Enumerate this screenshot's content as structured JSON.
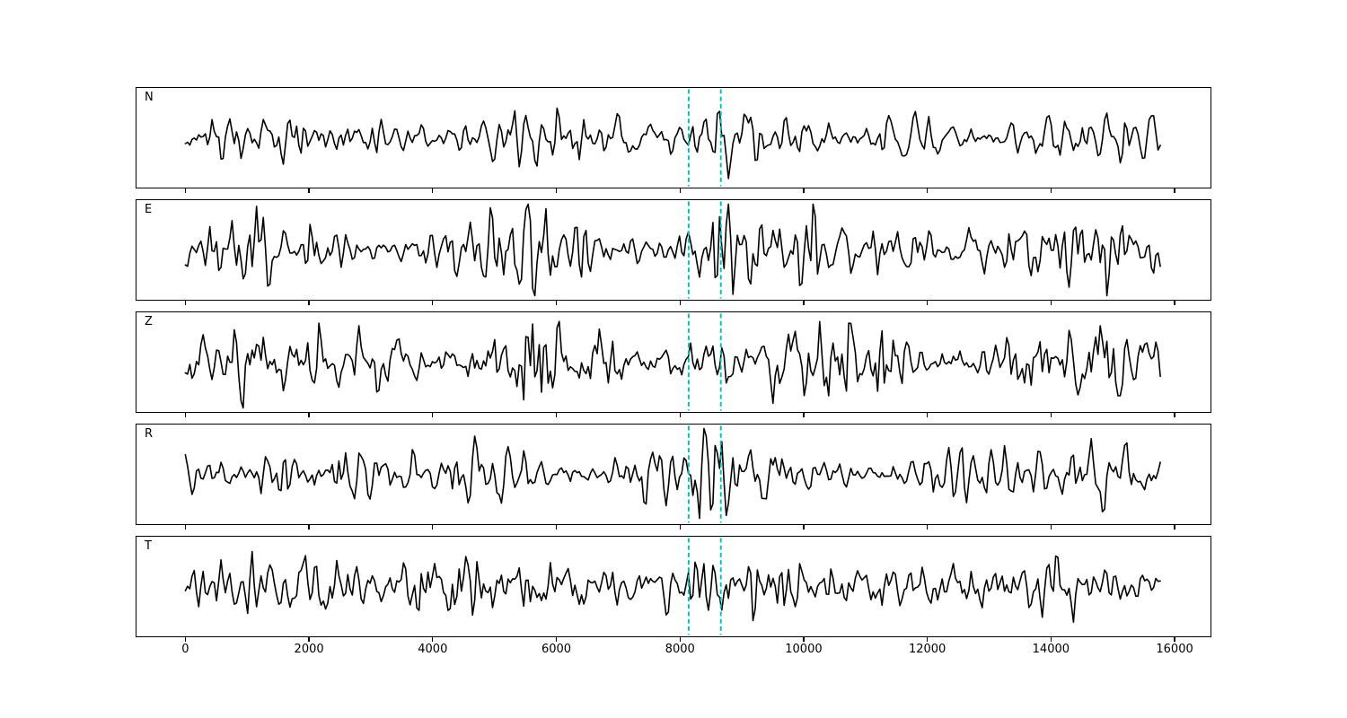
{
  "figure": {
    "background_color": "#ffffff",
    "frame_color": "#000000",
    "trace_color": "#000000",
    "pick_line_color": "#00bfbf"
  },
  "chart_data": {
    "type": "line",
    "title": "",
    "xlabel": "",
    "ylabel": "",
    "x_range_data": [
      0,
      15790
    ],
    "xlim": [
      -790,
      16580
    ],
    "x_ticks": [
      0,
      2000,
      4000,
      6000,
      8000,
      10000,
      12000,
      14000,
      16000
    ],
    "grid": false,
    "legend": "none",
    "panels": [
      {
        "label": "N",
        "seed": 7,
        "amplitude": 11,
        "burst": 1.15
      },
      {
        "label": "E",
        "seed": 13,
        "amplitude": 14,
        "burst": 0.75
      },
      {
        "label": "Z",
        "seed": 21,
        "amplitude": 15,
        "burst": 0.7
      },
      {
        "label": "R",
        "seed": 5,
        "amplitude": 11.5,
        "burst": 1.15
      },
      {
        "label": "T",
        "seed": 42,
        "amplitude": 14,
        "burst": 0.8
      }
    ],
    "pick_lines": [
      8140,
      8660
    ],
    "burst_center": 8480,
    "burst_width": 390,
    "description": "Five stacked seismogram traces (components N, E, Z, R, T) of band-limited noise spanning samples 0 to ~15790, each panel crossed by two vertical dashed cyan pick lines at x~8140 and x~8660 bracketing an amplitude burst; shared x-axis labeled 0 to 16000 every 2000."
  }
}
